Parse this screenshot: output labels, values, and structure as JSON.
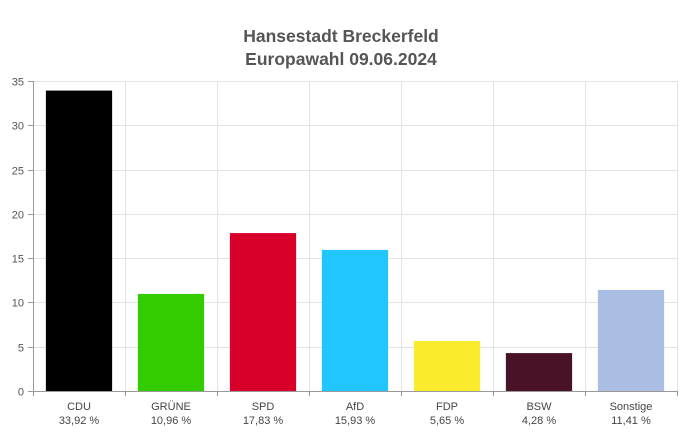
{
  "chart_data": {
    "type": "bar",
    "title": "Hansestadt Breckerfeld",
    "subtitle": "Europawahl 09.06.2024",
    "categories": [
      "CDU",
      "GRÜNE",
      "SPD",
      "AfD",
      "FDP",
      "BSW",
      "Sonstige"
    ],
    "values": [
      33.92,
      10.96,
      17.83,
      15.93,
      5.65,
      4.28,
      11.41
    ],
    "value_labels": [
      "33,92 %",
      "10,96 %",
      "17,83 %",
      "15,93 %",
      "5,65 %",
      "4,28 %",
      "11,41 %"
    ],
    "colors": [
      "#000000",
      "#33cc00",
      "#d8002b",
      "#22c6ff",
      "#faeb2d",
      "#4a1228",
      "#aabde3"
    ],
    "yticks": [
      "0",
      "5",
      "10",
      "15",
      "20",
      "25",
      "30",
      "35"
    ],
    "ylim": [
      0,
      35
    ],
    "grid": true,
    "legend": false,
    "xlabel": "",
    "ylabel": ""
  }
}
